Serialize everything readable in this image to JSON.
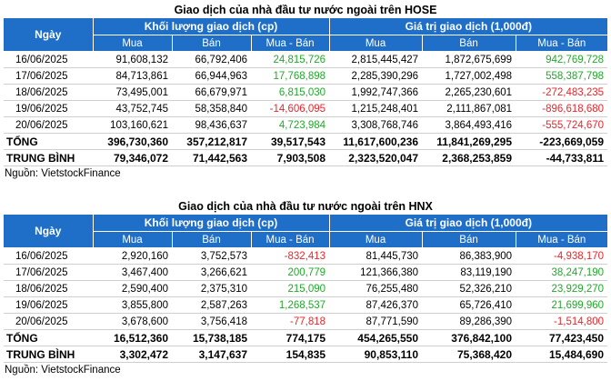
{
  "hose": {
    "title": "Giao dịch của nhà đầu tư nước ngoài trên HOSE",
    "headers": {
      "day": "Ngày",
      "volume_group": "Khối lượng giao dịch (cp)",
      "value_group": "Giá trị giao dịch (1,000đ)",
      "buy": "Mua",
      "sell": "Bán",
      "net": "Mua - Bán"
    },
    "rows": [
      {
        "date": "16/06/2025",
        "vol_buy": "91,608,132",
        "vol_sell": "66,792,406",
        "vol_net": "24,815,726",
        "vol_net_sign": "pos",
        "val_buy": "2,815,445,427",
        "val_sell": "1,872,675,699",
        "val_net": "942,769,728",
        "val_net_sign": "pos"
      },
      {
        "date": "17/06/2025",
        "vol_buy": "84,713,861",
        "vol_sell": "66,944,963",
        "vol_net": "17,768,898",
        "vol_net_sign": "pos",
        "val_buy": "2,285,390,296",
        "val_sell": "1,727,002,498",
        "val_net": "558,387,798",
        "val_net_sign": "pos"
      },
      {
        "date": "18/06/2025",
        "vol_buy": "73,495,001",
        "vol_sell": "66,679,971",
        "vol_net": "6,815,030",
        "vol_net_sign": "pos",
        "val_buy": "1,992,747,366",
        "val_sell": "2,265,230,601",
        "val_net": "-272,483,235",
        "val_net_sign": "neg"
      },
      {
        "date": "19/06/2025",
        "vol_buy": "43,752,745",
        "vol_sell": "58,358,840",
        "vol_net": "-14,606,095",
        "vol_net_sign": "neg",
        "val_buy": "1,215,248,401",
        "val_sell": "2,111,867,081",
        "val_net": "-896,618,680",
        "val_net_sign": "neg"
      },
      {
        "date": "20/06/2025",
        "vol_buy": "103,160,621",
        "vol_sell": "98,436,637",
        "vol_net": "4,723,984",
        "vol_net_sign": "pos",
        "val_buy": "3,308,768,746",
        "val_sell": "3,864,493,416",
        "val_net": "-555,724,670",
        "val_net_sign": "neg"
      }
    ],
    "total": {
      "label": "TỔNG",
      "vol_buy": "396,730,360",
      "vol_sell": "357,212,817",
      "vol_net": "39,517,543",
      "val_buy": "11,617,600,236",
      "val_sell": "11,841,269,295",
      "val_net": "-223,669,059"
    },
    "average": {
      "label": "TRUNG BÌNH",
      "vol_buy": "79,346,072",
      "vol_sell": "71,442,563",
      "vol_net": "7,903,508",
      "val_buy": "2,323,520,047",
      "val_sell": "2,368,253,859",
      "val_net": "-44,733,811"
    },
    "source": "Nguồn: VietstockFinance"
  },
  "hnx": {
    "title": "Giao dịch của nhà đầu tư nước ngoài trên HNX",
    "headers": {
      "day": "Ngày",
      "volume_group": "Khối lượng giao dịch (cp)",
      "value_group": "Giá trị giao dịch (1,000đ)",
      "buy": "Mua",
      "sell": "Bán",
      "net": "Mua - Bán"
    },
    "rows": [
      {
        "date": "16/06/2025",
        "vol_buy": "2,920,160",
        "vol_sell": "3,752,573",
        "vol_net": "-832,413",
        "vol_net_sign": "neg",
        "val_buy": "81,445,730",
        "val_sell": "86,383,900",
        "val_net": "-4,938,170",
        "val_net_sign": "neg"
      },
      {
        "date": "17/06/2025",
        "vol_buy": "3,467,400",
        "vol_sell": "3,266,621",
        "vol_net": "200,779",
        "vol_net_sign": "pos",
        "val_buy": "121,366,380",
        "val_sell": "83,119,190",
        "val_net": "38,247,190",
        "val_net_sign": "pos"
      },
      {
        "date": "18/06/2025",
        "vol_buy": "2,590,400",
        "vol_sell": "2,375,310",
        "vol_net": "215,090",
        "vol_net_sign": "pos",
        "val_buy": "76,255,480",
        "val_sell": "52,326,210",
        "val_net": "23,929,270",
        "val_net_sign": "pos"
      },
      {
        "date": "19/06/2025",
        "vol_buy": "3,855,800",
        "vol_sell": "2,587,263",
        "vol_net": "1,268,537",
        "vol_net_sign": "pos",
        "val_buy": "87,426,370",
        "val_sell": "65,726,410",
        "val_net": "21,699,960",
        "val_net_sign": "pos"
      },
      {
        "date": "20/06/2025",
        "vol_buy": "3,678,600",
        "vol_sell": "3,756,418",
        "vol_net": "-77,818",
        "vol_net_sign": "neg",
        "val_buy": "87,771,590",
        "val_sell": "89,286,390",
        "val_net": "-1,514,800",
        "val_net_sign": "neg"
      }
    ],
    "total": {
      "label": "TỔNG",
      "vol_buy": "16,512,360",
      "vol_sell": "15,738,185",
      "vol_net": "774,175",
      "val_buy": "454,265,550",
      "val_sell": "376,842,100",
      "val_net": "77,423,450"
    },
    "average": {
      "label": "TRUNG BÌNH",
      "vol_buy": "3,302,472",
      "vol_sell": "3,147,637",
      "vol_net": "154,835",
      "val_buy": "90,853,110",
      "val_sell": "75,368,420",
      "val_net": "15,484,690"
    },
    "source": "Nguồn: VietstockFinance"
  },
  "colors": {
    "header_bg": "#1f6fc9",
    "positive": "#22a82b",
    "negative": "#e8262b"
  }
}
